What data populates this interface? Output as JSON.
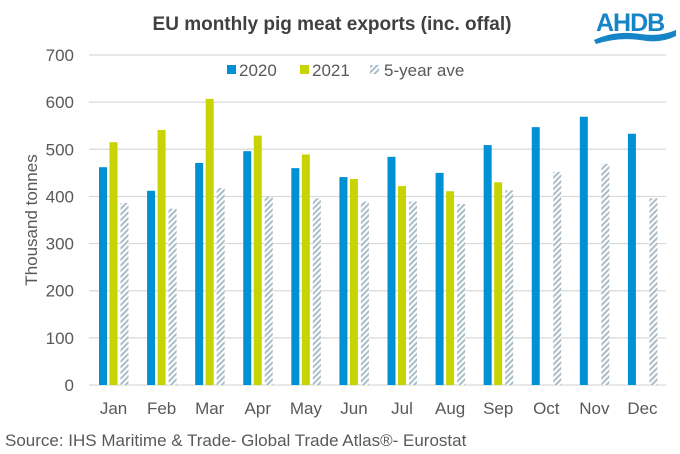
{
  "brand": {
    "logo_text": "AHDB",
    "logo_color": "#1685C8"
  },
  "source_note": "Source: IHS Maritime & Trade- Global Trade Atlas®- Eurostat",
  "chart_data": {
    "type": "bar",
    "title": "EU monthly  pig meat exports (inc. offal)",
    "xlabel": "",
    "ylabel": "Thousand tonnes",
    "ylim": [
      0,
      700
    ],
    "yticks": [
      0,
      100,
      200,
      300,
      400,
      500,
      600,
      700
    ],
    "grid": true,
    "legend_position": "top-center",
    "categories": [
      "Jan",
      "Feb",
      "Mar",
      "Apr",
      "May",
      "Jun",
      "Jul",
      "Aug",
      "Sep",
      "Oct",
      "Nov",
      "Dec"
    ],
    "series": [
      {
        "name": "2020",
        "color": "#0090D4",
        "pattern": "solid",
        "values": [
          462,
          412,
          471,
          496,
          460,
          441,
          484,
          450,
          509,
          547,
          569,
          533
        ]
      },
      {
        "name": "2021",
        "color": "#C8D400",
        "pattern": "solid",
        "values": [
          515,
          541,
          607,
          529,
          489,
          437,
          422,
          411,
          430,
          null,
          null,
          null
        ]
      },
      {
        "name": "5-year ave",
        "color": "#A9BCC8",
        "pattern": "diagonal-hatch",
        "values": [
          386,
          374,
          418,
          399,
          396,
          389,
          389,
          384,
          413,
          452,
          469,
          396
        ]
      }
    ]
  }
}
